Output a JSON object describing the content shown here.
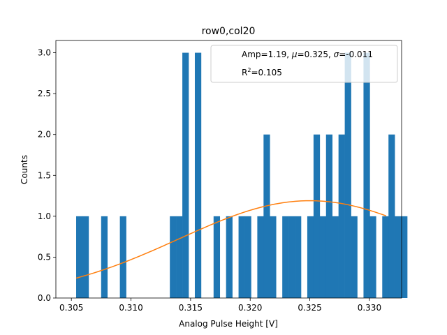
{
  "chart_data": {
    "type": "bar",
    "title": "row0,col20",
    "xlabel": "Analog Pulse Height [V]",
    "ylabel": "Counts",
    "xlim": [
      0.3037,
      0.3327
    ],
    "ylim": [
      0,
      3.15
    ],
    "xticks": [
      0.305,
      0.31,
      0.315,
      0.32,
      0.325,
      0.33
    ],
    "xtick_labels": [
      "0.305",
      "0.310",
      "0.315",
      "0.320",
      "0.325",
      "0.330"
    ],
    "yticks": [
      0.0,
      0.5,
      1.0,
      1.5,
      2.0,
      2.5,
      3.0
    ],
    "ytick_labels": [
      "0.0",
      "0.5",
      "1.0",
      "1.5",
      "2.0",
      "2.5",
      "3.0"
    ],
    "grid": false,
    "bar_color": "#1f77b4",
    "fit_color": "#ff7f0e",
    "bin_start": 0.3054,
    "bin_width": 0.000524,
    "counts": [
      1,
      1,
      0,
      0,
      1,
      0,
      0,
      1,
      0,
      0,
      0,
      0,
      0,
      0,
      0,
      1,
      1,
      3,
      0,
      3,
      0,
      0,
      1,
      0,
      1,
      0,
      1,
      1,
      0,
      1,
      2,
      1,
      0,
      1,
      1,
      1,
      0,
      1,
      2,
      1,
      2,
      1,
      2,
      3,
      1,
      0,
      3,
      1,
      0,
      1,
      2,
      1,
      1
    ],
    "fit": {
      "name": "Gaussian fit",
      "amp": 1.19,
      "mu": 0.325,
      "sigma": 0.011,
      "x_range": [
        0.3054,
        0.3314
      ]
    },
    "legend": {
      "location": "upper right",
      "entries": [
        "Amp=1.19, μ=0.325, σ=-0.011",
        "R²=0.105"
      ],
      "line1_prefix": "Amp=1.19, ",
      "line1_mu_symbol": "μ",
      "line1_mu_value": "=0.325, ",
      "line1_sigma_symbol": "σ",
      "line1_sigma_value": "=-0.011",
      "line2_prefix": "R",
      "line2_sup": "2",
      "line2_value": "=0.105"
    }
  }
}
